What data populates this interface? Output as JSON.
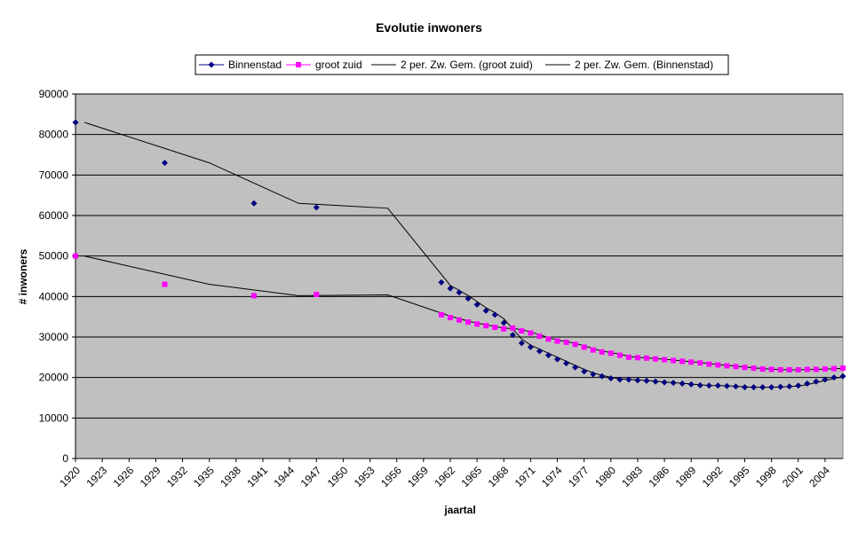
{
  "chart_data": {
    "type": "line",
    "title": "Evolutie inwoners",
    "xlabel": "jaartal",
    "ylabel": "# inwoners",
    "ylim": [
      0,
      90000
    ],
    "yticks": [
      "0",
      "10000",
      "20000",
      "30000",
      "40000",
      "50000",
      "60000",
      "70000",
      "80000",
      "90000"
    ],
    "xticks": [
      "1920",
      "1923",
      "1926",
      "1929",
      "1932",
      "1935",
      "1938",
      "1941",
      "1944",
      "1947",
      "1950",
      "1953",
      "1956",
      "1959",
      "1962",
      "1965",
      "1968",
      "1971",
      "1974",
      "1977",
      "1980",
      "1983",
      "1986",
      "1989",
      "1992",
      "1995",
      "1998",
      "2001",
      "2004"
    ],
    "x_range": [
      1920,
      2006
    ],
    "grid": "horizontal",
    "legend_position": "top",
    "colors": {
      "plot_background": "#C0C0C0",
      "binnenstad": "#000080",
      "groot_zuid": "#FF00FF",
      "trend": "#000000"
    },
    "series": [
      {
        "name": "Binnenstad",
        "marker": "diamond",
        "x": [
          1920,
          1930,
          1940,
          1947,
          1961,
          1962,
          1963,
          1964,
          1965,
          1966,
          1967,
          1968,
          1969,
          1970,
          1971,
          1972,
          1973,
          1974,
          1975,
          1976,
          1977,
          1978,
          1979,
          1980,
          1981,
          1982,
          1983,
          1984,
          1985,
          1986,
          1987,
          1988,
          1989,
          1990,
          1991,
          1992,
          1993,
          1994,
          1995,
          1996,
          1997,
          1998,
          1999,
          2000,
          2001,
          2002,
          2003,
          2004,
          2005,
          2006
        ],
        "values": [
          83000,
          73000,
          63000,
          62000,
          43500,
          42000,
          41000,
          39500,
          38000,
          36500,
          35500,
          33500,
          30500,
          28500,
          27500,
          26500,
          25500,
          24500,
          23500,
          22500,
          21500,
          20800,
          20300,
          19800,
          19500,
          19500,
          19300,
          19200,
          19000,
          18800,
          18700,
          18500,
          18300,
          18100,
          18000,
          18000,
          17900,
          17800,
          17600,
          17600,
          17600,
          17600,
          17700,
          17800,
          18000,
          18500,
          19000,
          19500,
          20000,
          20300
        ]
      },
      {
        "name": "groot zuid",
        "marker": "square",
        "x": [
          1920,
          1930,
          1940,
          1947,
          1961,
          1962,
          1963,
          1964,
          1965,
          1966,
          1967,
          1968,
          1969,
          1970,
          1971,
          1972,
          1973,
          1974,
          1975,
          1976,
          1977,
          1978,
          1979,
          1980,
          1981,
          1982,
          1983,
          1984,
          1985,
          1986,
          1987,
          1988,
          1989,
          1990,
          1991,
          1992,
          1993,
          1994,
          1995,
          1996,
          1997,
          1998,
          1999,
          2000,
          2001,
          2002,
          2003,
          2004,
          2005,
          2006
        ],
        "values": [
          50000,
          43000,
          40200,
          40500,
          35500,
          34800,
          34200,
          33700,
          33200,
          32800,
          32400,
          32000,
          32200,
          31500,
          31000,
          30200,
          29500,
          29000,
          28700,
          28200,
          27500,
          26800,
          26300,
          26000,
          25500,
          25000,
          24900,
          24800,
          24600,
          24400,
          24200,
          24000,
          23800,
          23600,
          23300,
          23100,
          22900,
          22700,
          22500,
          22300,
          22100,
          22000,
          21900,
          21900,
          21900,
          22000,
          22000,
          22100,
          22200,
          22300
        ]
      },
      {
        "name": "2 per. Zw. Gem. (groot zuid)",
        "marker": "none",
        "x": [
          1921,
          1935,
          1945,
          1955,
          1962,
          1963,
          1964,
          1965,
          1966,
          1967,
          1968,
          1969,
          1970,
          1971,
          1972,
          1973,
          1974,
          1975,
          1976,
          1977,
          1978,
          1979,
          1980,
          1981,
          1982,
          1983,
          1984,
          1985,
          1986,
          1987,
          1988,
          1989,
          1990,
          1991,
          1992,
          1993,
          1994,
          1995,
          1996,
          1997,
          1998,
          1999,
          2000,
          2001,
          2002,
          2003,
          2004,
          2005,
          2006
        ],
        "values": [
          50000,
          43000,
          40200,
          40400,
          35150,
          34500,
          33950,
          33450,
          33000,
          32600,
          32200,
          32100,
          31850,
          31250,
          30600,
          29850,
          29250,
          28850,
          28450,
          27850,
          27150,
          26550,
          26150,
          25750,
          25250,
          24950,
          24850,
          24700,
          24500,
          24300,
          24100,
          23900,
          23700,
          23450,
          23200,
          23000,
          22800,
          22600,
          22400,
          22200,
          22050,
          21950,
          21900,
          21900,
          21950,
          22000,
          22050,
          22150,
          22250
        ]
      },
      {
        "name": "2 per. Zw. Gem. (Binnenstad)",
        "marker": "none",
        "x": [
          1921,
          1935,
          1945,
          1955,
          1962,
          1963,
          1964,
          1965,
          1966,
          1967,
          1968,
          1969,
          1970,
          1971,
          1972,
          1973,
          1974,
          1975,
          1976,
          1977,
          1978,
          1979,
          1980,
          1981,
          1982,
          1983,
          1984,
          1985,
          1986,
          1987,
          1988,
          1989,
          1990,
          1991,
          1992,
          1993,
          1994,
          1995,
          1996,
          1997,
          1998,
          1999,
          2000,
          2001,
          2002,
          2003,
          2004,
          2005,
          2006
        ],
        "values": [
          83000,
          73000,
          63000,
          61800,
          42750,
          41500,
          40250,
          38750,
          37250,
          36000,
          34500,
          32000,
          29500,
          28000,
          27000,
          26000,
          25000,
          24000,
          23000,
          22000,
          21150,
          20550,
          20050,
          19650,
          19500,
          19400,
          19250,
          19100,
          18900,
          18750,
          18600,
          18400,
          18200,
          18050,
          18000,
          17950,
          17850,
          17700,
          17600,
          17600,
          17600,
          17650,
          17750,
          17900,
          18250,
          18750,
          19250,
          19750,
          20150
        ]
      }
    ]
  }
}
